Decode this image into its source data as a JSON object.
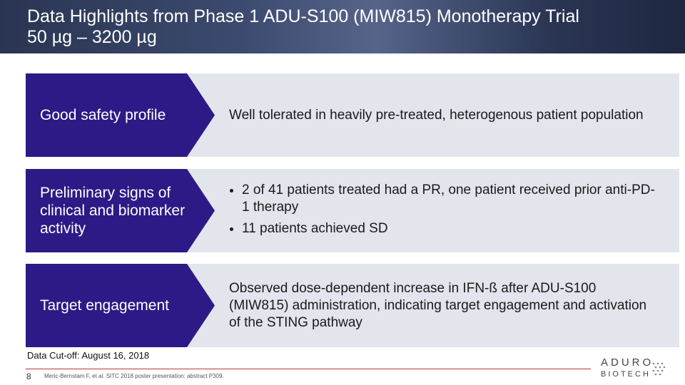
{
  "header": {
    "title": [
      "Data Highlights from Phase 1 ADU-S100 (MIW815) Monotherapy Trial",
      "50 µg – 3200 µg"
    ]
  },
  "rows": [
    {
      "label": "Good safety profile",
      "text": "Well tolerated in heavily pre-treated, heterogenous patient population"
    },
    {
      "label": "Preliminary signs of clinical and biomarker activity",
      "bullets": [
        "2 of 41 patients treated had a PR, one patient received prior anti-PD-1 therapy",
        "11 patients achieved SD"
      ]
    },
    {
      "label": "Target engagement",
      "text": "Observed dose-dependent increase in IFN-ß after ADU-S100 (MIW815) administration, indicating target engagement and activation of the STING pathway"
    }
  ],
  "footer": {
    "cutoff": "Data Cut-off: August 16, 2018",
    "page": "8",
    "reference": "Meric-Bernstam F, et al. SITC 2018 poster presentation: abstract P309.",
    "logo": {
      "name": "ADURO",
      "sub": "BIOTECH"
    }
  }
}
